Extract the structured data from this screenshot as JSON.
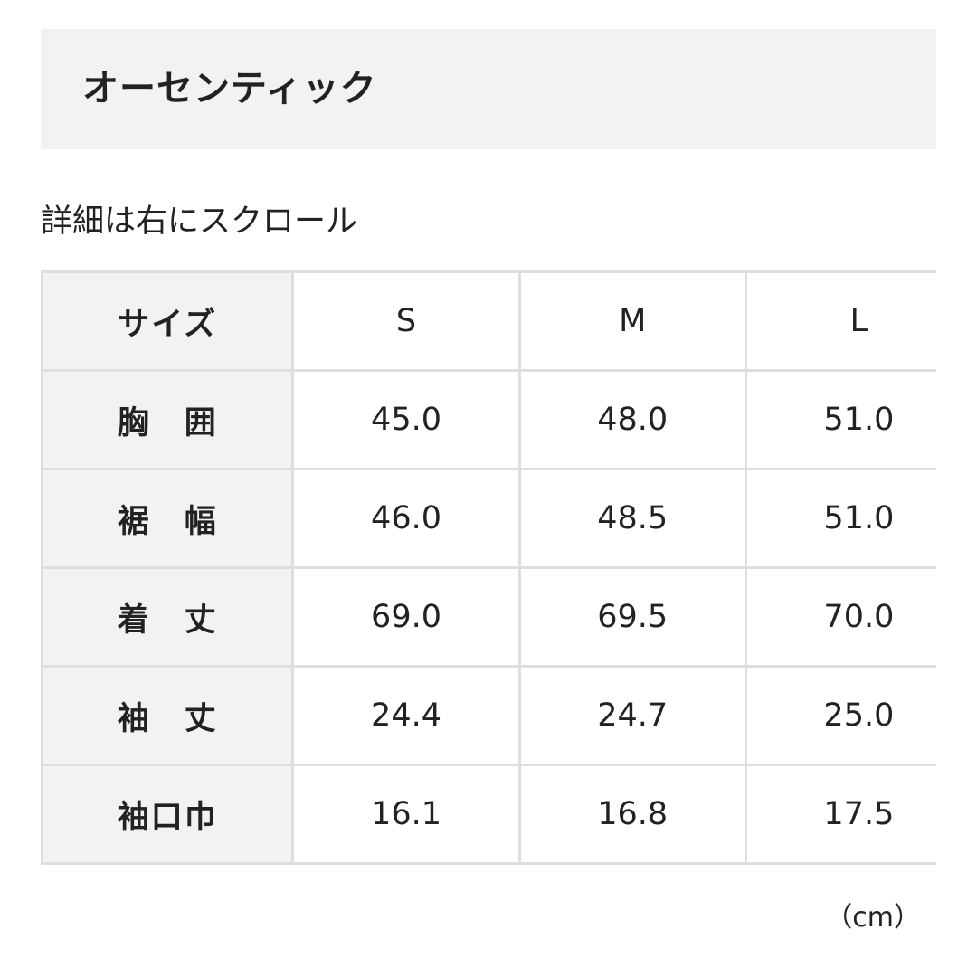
{
  "title": "オーセンティック",
  "hint": "詳細は右にスクロール",
  "table": {
    "header": [
      "サイズ",
      "S",
      "M",
      "L"
    ],
    "rows": [
      [
        "胸　囲",
        "45.0",
        "48.0",
        "51.0"
      ],
      [
        "裾　幅",
        "46.0",
        "48.5",
        "51.0"
      ],
      [
        "着　丈",
        "69.0",
        "69.5",
        "70.0"
      ],
      [
        "袖　丈",
        "24.4",
        "24.7",
        "25.0"
      ],
      [
        "袖口巾",
        "16.1",
        "16.8",
        "17.5"
      ]
    ]
  },
  "unit": "（cm）"
}
